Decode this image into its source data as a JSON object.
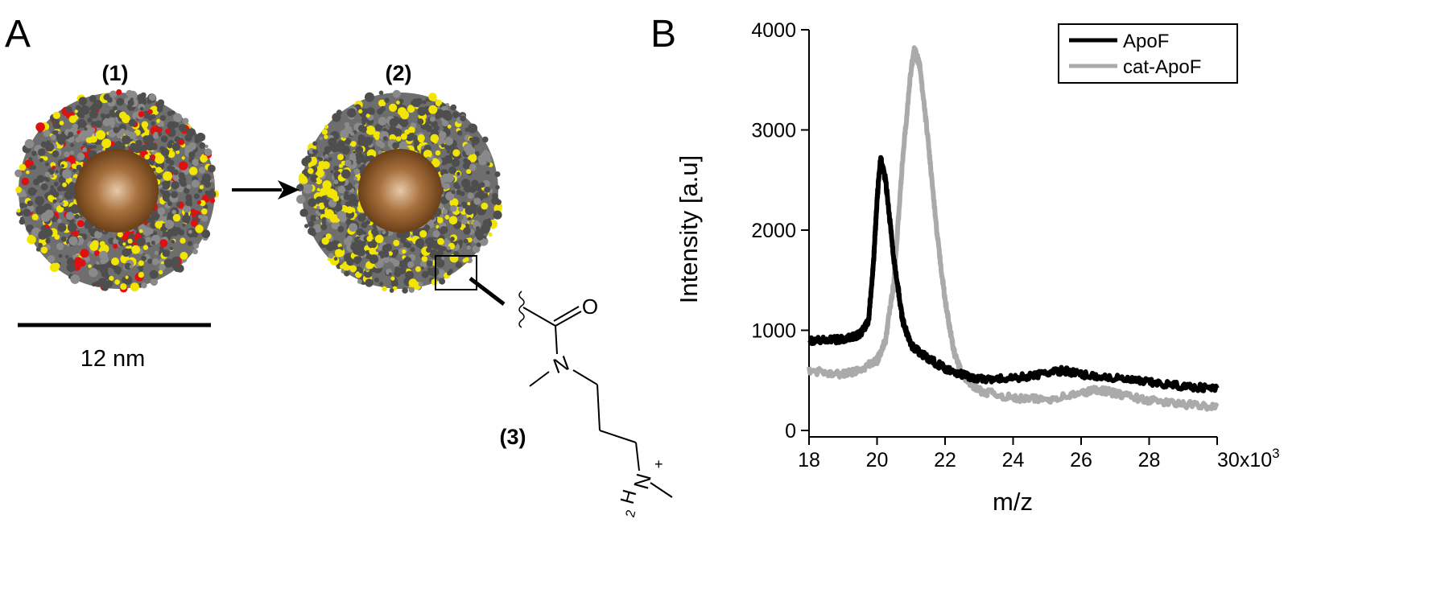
{
  "panel_a": {
    "letter": "A",
    "label_1": "(1)",
    "label_2": "(2)",
    "label_3": "(3)",
    "scale_bar": "12 nm",
    "atoms": {
      "oxygen": "O",
      "nitrogen": "N",
      "nitrogen_plus": "N",
      "charge": "+",
      "hydrogen": "H",
      "h_count": "2"
    },
    "colors": {
      "core": "#8a5a2b",
      "protein": "#6e6e6e",
      "highlight_yellow": "#f2e600",
      "highlight_red": "#e01010"
    }
  },
  "panel_b": {
    "letter": "B"
  },
  "chart_data": {
    "type": "line",
    "title": "",
    "xlabel": "m/z",
    "ylabel": "Intensity [a.u]",
    "x_multiplier_label": "x10",
    "x_multiplier_exp": "3",
    "xlim": [
      18,
      30
    ],
    "ylim": [
      0,
      4000
    ],
    "xticks": [
      "18",
      "20",
      "22",
      "24",
      "26",
      "28",
      "30"
    ],
    "yticks": [
      "0",
      "1000",
      "2000",
      "3000",
      "4000"
    ],
    "grid": false,
    "legend": "top-right",
    "series": [
      {
        "name": "ApoF",
        "color": "#000000",
        "x": [
          18,
          18.5,
          19,
          19.5,
          19.75,
          19.9,
          20,
          20.1,
          20.25,
          20.5,
          20.75,
          21,
          21.5,
          22,
          22.5,
          23,
          24,
          25,
          25.5,
          26,
          27,
          28,
          29,
          30
        ],
        "y": [
          900,
          900,
          910,
          960,
          1100,
          1700,
          2300,
          2720,
          2500,
          1700,
          1100,
          850,
          720,
          620,
          560,
          510,
          520,
          570,
          600,
          560,
          520,
          480,
          440,
          420
        ]
      },
      {
        "name": "cat-ApoF",
        "color": "#aaaaaa",
        "x": [
          18,
          19,
          19.5,
          20,
          20.25,
          20.5,
          20.75,
          21,
          21.1,
          21.25,
          21.5,
          21.75,
          22,
          22.25,
          22.5,
          23,
          24,
          25,
          26,
          26.5,
          27,
          28,
          29,
          30
        ],
        "y": [
          600,
          560,
          600,
          700,
          900,
          1500,
          2700,
          3600,
          3800,
          3650,
          2900,
          2000,
          1300,
          800,
          550,
          400,
          320,
          310,
          370,
          410,
          370,
          300,
          260,
          240
        ]
      }
    ]
  }
}
